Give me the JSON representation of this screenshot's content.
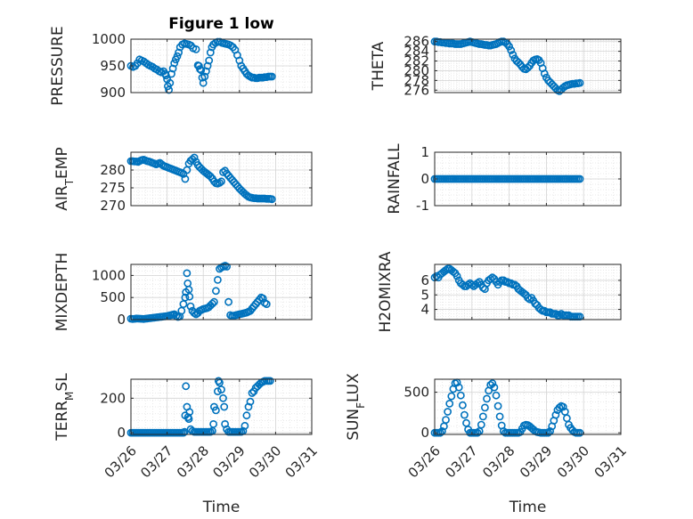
{
  "figure": {
    "title": "Figure 1 low",
    "marker_color": "#0072BD",
    "x_tick_labels": [
      "03/26",
      "03/27",
      "03/28",
      "03/29",
      "03/30",
      "03/31"
    ],
    "x_label": "Time"
  },
  "chart_data": [
    {
      "type": "scatter",
      "title": "Figure 1 low",
      "ylabel": "PRESSURE",
      "xlim": [
        0,
        5
      ],
      "ylim": [
        900,
        1000
      ],
      "yticks": [
        900,
        950,
        1000
      ],
      "grid": true,
      "x": [
        0.0,
        0.06,
        0.12,
        0.18,
        0.24,
        0.3,
        0.36,
        0.42,
        0.48,
        0.54,
        0.6,
        0.66,
        0.72,
        0.78,
        0.84,
        0.9,
        0.95,
        0.97,
        1.0,
        1.02,
        1.05,
        1.08,
        1.12,
        1.16,
        1.2,
        1.24,
        1.28,
        1.32,
        1.36,
        1.42,
        1.48,
        1.54,
        1.6,
        1.66,
        1.72,
        1.8,
        1.85,
        1.88,
        1.91,
        1.94,
        1.97,
        2.0,
        2.04,
        2.08,
        2.12,
        2.16,
        2.2,
        2.24,
        2.28,
        2.34,
        2.4,
        2.46,
        2.52,
        2.58,
        2.64,
        2.7,
        2.76,
        2.82,
        2.88,
        2.94,
        3.0,
        3.05,
        3.1,
        3.15,
        3.2,
        3.25,
        3.3,
        3.35,
        3.4,
        3.45,
        3.5,
        3.55,
        3.6,
        3.65,
        3.7,
        3.75,
        3.8,
        3.85,
        3.9
      ],
      "y": [
        950,
        948,
        950,
        955,
        962,
        960,
        958,
        955,
        952,
        950,
        948,
        945,
        943,
        940,
        938,
        940,
        935,
        932,
        925,
        912,
        905,
        918,
        935,
        945,
        955,
        962,
        968,
        975,
        985,
        990,
        992,
        991,
        990,
        988,
        983,
        981,
        951,
        950,
        944,
        942,
        928,
        918,
        930,
        940,
        950,
        960,
        975,
        985,
        990,
        993,
        995,
        995,
        993,
        992,
        991,
        990,
        988,
        985,
        980,
        970,
        960,
        950,
        945,
        940,
        935,
        932,
        930,
        928,
        928,
        927,
        927,
        928,
        928,
        928,
        929,
        929,
        930,
        930,
        930
      ]
    },
    {
      "type": "scatter",
      "ylabel": "THETA",
      "xlim": [
        0,
        5
      ],
      "ylim": [
        275.5,
        286.5
      ],
      "yticks": [
        276,
        278,
        280,
        282,
        284,
        286
      ],
      "grid": true,
      "x": [
        0.0,
        0.05,
        0.1,
        0.15,
        0.2,
        0.25,
        0.3,
        0.35,
        0.4,
        0.45,
        0.5,
        0.55,
        0.6,
        0.65,
        0.7,
        0.75,
        0.8,
        0.85,
        0.9,
        0.95,
        1.0,
        1.05,
        1.1,
        1.15,
        1.2,
        1.25,
        1.3,
        1.35,
        1.4,
        1.45,
        1.5,
        1.55,
        1.6,
        1.65,
        1.7,
        1.75,
        1.8,
        1.85,
        1.9,
        1.95,
        2.0,
        2.05,
        2.1,
        2.15,
        2.2,
        2.25,
        2.3,
        2.35,
        2.4,
        2.45,
        2.5,
        2.55,
        2.6,
        2.65,
        2.7,
        2.75,
        2.8,
        2.85,
        2.9,
        2.95,
        3.0,
        3.05,
        3.1,
        3.15,
        3.2,
        3.25,
        3.3,
        3.35,
        3.4,
        3.45,
        3.5,
        3.55,
        3.6,
        3.65,
        3.7,
        3.75,
        3.8,
        3.85,
        3.9
      ],
      "y": [
        286.0,
        286.0,
        285.9,
        285.9,
        285.8,
        285.8,
        285.7,
        285.7,
        285.6,
        285.6,
        285.6,
        285.5,
        285.5,
        285.5,
        285.5,
        285.6,
        285.7,
        285.8,
        285.9,
        286.0,
        285.9,
        285.8,
        285.7,
        285.6,
        285.5,
        285.5,
        285.4,
        285.3,
        285.3,
        285.2,
        285.2,
        285.3,
        285.4,
        285.5,
        285.7,
        285.9,
        286.0,
        286.0,
        285.8,
        285.5,
        285.0,
        284.2,
        283.3,
        282.5,
        282.0,
        281.7,
        281.3,
        280.8,
        280.4,
        280.3,
        280.6,
        281.0,
        281.6,
        282.1,
        282.3,
        282.4,
        282.2,
        281.6,
        280.5,
        279.4,
        278.6,
        278.0,
        277.6,
        277.2,
        276.8,
        276.4,
        276.0,
        275.8,
        276.1,
        276.5,
        276.8,
        277.0,
        277.1,
        277.2,
        277.3,
        277.3,
        277.4,
        277.4,
        277.5
      ]
    },
    {
      "type": "scatter",
      "ylabel": "AIR_TEMP",
      "xlim": [
        0,
        5
      ],
      "ylim": [
        270,
        285
      ],
      "yticks": [
        270,
        275,
        280
      ],
      "grid": true,
      "x": [
        0.0,
        0.05,
        0.1,
        0.15,
        0.2,
        0.25,
        0.3,
        0.35,
        0.4,
        0.45,
        0.5,
        0.55,
        0.6,
        0.65,
        0.7,
        0.75,
        0.8,
        0.85,
        0.9,
        0.95,
        1.0,
        1.05,
        1.1,
        1.15,
        1.2,
        1.25,
        1.3,
        1.35,
        1.4,
        1.45,
        1.5,
        1.55,
        1.6,
        1.65,
        1.7,
        1.75,
        1.8,
        1.85,
        1.9,
        1.95,
        2.0,
        2.05,
        2.1,
        2.15,
        2.2,
        2.25,
        2.3,
        2.35,
        2.4,
        2.45,
        2.5,
        2.55,
        2.6,
        2.65,
        2.7,
        2.75,
        2.8,
        2.85,
        2.9,
        2.95,
        3.0,
        3.05,
        3.1,
        3.15,
        3.2,
        3.25,
        3.3,
        3.35,
        3.4,
        3.45,
        3.5,
        3.55,
        3.6,
        3.65,
        3.7,
        3.75,
        3.8,
        3.85,
        3.9
      ],
      "y": [
        282.5,
        282.5,
        282.4,
        282.4,
        282.3,
        282.6,
        282.8,
        282.9,
        282.7,
        282.5,
        282.4,
        282.2,
        282.0,
        281.8,
        281.6,
        281.8,
        282.0,
        281.6,
        281.2,
        281.0,
        280.8,
        280.6,
        280.4,
        280.2,
        280.0,
        279.8,
        279.6,
        279.4,
        279.2,
        278.9,
        277.5,
        280.0,
        281.8,
        282.6,
        283.0,
        283.5,
        282.3,
        281.4,
        280.8,
        280.3,
        279.8,
        279.4,
        279.0,
        278.6,
        278.2,
        277.6,
        276.8,
        276.3,
        276.2,
        276.4,
        276.8,
        279.4,
        279.8,
        279.0,
        278.4,
        277.8,
        277.2,
        276.6,
        276.0,
        275.4,
        274.8,
        274.3,
        273.8,
        273.3,
        272.9,
        272.5,
        272.3,
        272.2,
        272.1,
        272.1,
        272.0,
        272.0,
        272.0,
        272.0,
        272.0,
        271.9,
        271.9,
        271.9,
        271.8
      ]
    },
    {
      "type": "scatter",
      "ylabel": "RAINFALL",
      "xlim": [
        0,
        5
      ],
      "ylim": [
        -1,
        1
      ],
      "yticks": [
        -1,
        0,
        1
      ],
      "grid": true,
      "x": [
        0.0,
        0.05,
        0.1,
        0.15,
        0.2,
        0.25,
        0.3,
        0.35,
        0.4,
        0.45,
        0.5,
        0.55,
        0.6,
        0.65,
        0.7,
        0.75,
        0.8,
        0.85,
        0.9,
        0.95,
        1.0,
        1.05,
        1.1,
        1.15,
        1.2,
        1.25,
        1.3,
        1.35,
        1.4,
        1.45,
        1.5,
        1.55,
        1.6,
        1.65,
        1.7,
        1.75,
        1.8,
        1.85,
        1.9,
        1.95,
        2.0,
        2.05,
        2.1,
        2.15,
        2.2,
        2.25,
        2.3,
        2.35,
        2.4,
        2.45,
        2.5,
        2.55,
        2.6,
        2.65,
        2.7,
        2.75,
        2.8,
        2.85,
        2.9,
        2.95,
        3.0,
        3.05,
        3.1,
        3.15,
        3.2,
        3.25,
        3.3,
        3.35,
        3.4,
        3.45,
        3.5,
        3.55,
        3.6,
        3.65,
        3.7,
        3.75,
        3.8,
        3.85,
        3.9
      ],
      "y": [
        0,
        0,
        0,
        0,
        0,
        0,
        0,
        0,
        0,
        0,
        0,
        0,
        0,
        0,
        0,
        0,
        0,
        0,
        0,
        0,
        0,
        0,
        0,
        0,
        0,
        0,
        0,
        0,
        0,
        0,
        0,
        0,
        0,
        0,
        0,
        0,
        0,
        0,
        0,
        0,
        0,
        0,
        0,
        0,
        0,
        0,
        0,
        0,
        0,
        0,
        0,
        0,
        0,
        0,
        0,
        0,
        0,
        0,
        0,
        0,
        0,
        0,
        0,
        0,
        0,
        0,
        0,
        0,
        0,
        0,
        0,
        0,
        0,
        0,
        0,
        0,
        0,
        0,
        0
      ]
    },
    {
      "type": "scatter",
      "ylabel": "MIXDEPTH",
      "xlim": [
        0,
        5
      ],
      "ylim": [
        0,
        1250
      ],
      "yticks": [
        0,
        500,
        1000
      ],
      "grid": true,
      "x": [
        0.0,
        0.05,
        0.1,
        0.15,
        0.2,
        0.25,
        0.3,
        0.35,
        0.4,
        0.45,
        0.5,
        0.55,
        0.6,
        0.65,
        0.7,
        0.75,
        0.8,
        0.85,
        0.9,
        0.95,
        1.0,
        1.05,
        1.1,
        1.15,
        1.2,
        1.25,
        1.3,
        1.35,
        1.4,
        1.45,
        1.5,
        1.52,
        1.55,
        1.57,
        1.6,
        1.62,
        1.65,
        1.7,
        1.75,
        1.8,
        1.85,
        1.9,
        1.95,
        2.0,
        2.05,
        2.1,
        2.15,
        2.2,
        2.25,
        2.3,
        2.35,
        2.4,
        2.45,
        2.5,
        2.55,
        2.6,
        2.65,
        2.7,
        2.75,
        2.8,
        2.85,
        2.9,
        2.95,
        3.0,
        3.05,
        3.1,
        3.15,
        3.2,
        3.25,
        3.3,
        3.35,
        3.4,
        3.45,
        3.5,
        3.55,
        3.6,
        3.65,
        3.7,
        3.75
      ],
      "y": [
        20,
        15,
        18,
        25,
        22,
        20,
        18,
        15,
        20,
        25,
        30,
        35,
        40,
        45,
        50,
        55,
        60,
        65,
        70,
        75,
        80,
        90,
        100,
        110,
        120,
        80,
        60,
        70,
        200,
        350,
        500,
        620,
        1050,
        820,
        680,
        520,
        300,
        200,
        150,
        120,
        150,
        200,
        220,
        240,
        250,
        260,
        280,
        320,
        360,
        400,
        650,
        900,
        1150,
        1180,
        1200,
        1220,
        1200,
        400,
        100,
        80,
        90,
        100,
        110,
        120,
        130,
        140,
        150,
        160,
        180,
        200,
        250,
        300,
        350,
        400,
        450,
        500,
        480,
        380,
        350
      ]
    },
    {
      "type": "scatter",
      "ylabel": "H2OMIXRA",
      "xlim": [
        0,
        5
      ],
      "ylim": [
        3.3,
        7.1
      ],
      "yticks": [
        4,
        5,
        6
      ],
      "grid": true,
      "x": [
        0.0,
        0.05,
        0.1,
        0.15,
        0.2,
        0.25,
        0.3,
        0.35,
        0.4,
        0.45,
        0.5,
        0.55,
        0.6,
        0.65,
        0.7,
        0.75,
        0.8,
        0.85,
        0.9,
        0.95,
        1.0,
        1.05,
        1.1,
        1.15,
        1.2,
        1.25,
        1.3,
        1.35,
        1.4,
        1.45,
        1.5,
        1.55,
        1.6,
        1.65,
        1.7,
        1.75,
        1.8,
        1.85,
        1.9,
        1.95,
        2.0,
        2.05,
        2.1,
        2.15,
        2.2,
        2.25,
        2.3,
        2.35,
        2.4,
        2.45,
        2.5,
        2.55,
        2.6,
        2.65,
        2.7,
        2.75,
        2.8,
        2.85,
        2.9,
        2.95,
        3.0,
        3.05,
        3.1,
        3.15,
        3.2,
        3.25,
        3.3,
        3.35,
        3.4,
        3.45,
        3.5,
        3.55,
        3.6,
        3.65,
        3.7,
        3.75,
        3.8,
        3.85,
        3.9
      ],
      "y": [
        6.2,
        6.3,
        6.2,
        6.4,
        6.5,
        6.6,
        6.7,
        6.8,
        6.8,
        6.7,
        6.6,
        6.5,
        6.3,
        6.0,
        5.8,
        5.7,
        5.6,
        5.6,
        5.7,
        5.8,
        5.7,
        5.6,
        5.7,
        5.8,
        5.9,
        5.7,
        5.5,
        5.4,
        5.8,
        6.0,
        6.1,
        6.2,
        6.1,
        5.9,
        5.7,
        5.9,
        6.0,
        6.0,
        5.9,
        5.9,
        5.8,
        5.8,
        5.7,
        5.7,
        5.6,
        5.4,
        5.3,
        5.2,
        5.1,
        5.0,
        4.8,
        4.7,
        4.8,
        4.6,
        4.4,
        4.3,
        4.1,
        4.0,
        3.9,
        3.9,
        3.8,
        3.8,
        3.8,
        3.7,
        3.7,
        3.7,
        3.6,
        3.6,
        3.7,
        3.6,
        3.6,
        3.6,
        3.6,
        3.5,
        3.5,
        3.5,
        3.5,
        3.5,
        3.5
      ]
    },
    {
      "type": "scatter",
      "ylabel": "TERR_MSL",
      "xlim": [
        0,
        5
      ],
      "ylim": [
        -10,
        310
      ],
      "yticks": [
        0,
        200
      ],
      "grid": true,
      "x": [
        0.0,
        0.05,
        0.1,
        0.15,
        0.2,
        0.25,
        0.3,
        0.35,
        0.4,
        0.45,
        0.5,
        0.55,
        0.6,
        0.65,
        0.7,
        0.75,
        0.8,
        0.85,
        0.9,
        0.95,
        1.0,
        1.05,
        1.1,
        1.15,
        1.2,
        1.25,
        1.3,
        1.35,
        1.4,
        1.45,
        1.48,
        1.5,
        1.52,
        1.55,
        1.58,
        1.6,
        1.62,
        1.65,
        1.7,
        1.75,
        1.8,
        1.85,
        1.9,
        1.95,
        2.0,
        2.05,
        2.1,
        2.15,
        2.2,
        2.25,
        2.28,
        2.3,
        2.35,
        2.4,
        2.42,
        2.45,
        2.5,
        2.55,
        2.58,
        2.6,
        2.65,
        2.7,
        2.75,
        2.8,
        2.85,
        2.9,
        2.95,
        3.0,
        3.05,
        3.1,
        3.15,
        3.2,
        3.25,
        3.3,
        3.35,
        3.4,
        3.45,
        3.5,
        3.55,
        3.6,
        3.65,
        3.7,
        3.75,
        3.8,
        3.85
      ],
      "y": [
        0,
        0,
        0,
        0,
        0,
        0,
        0,
        0,
        0,
        0,
        0,
        0,
        0,
        0,
        0,
        0,
        0,
        0,
        0,
        0,
        0,
        0,
        0,
        0,
        0,
        0,
        0,
        0,
        0,
        0,
        5,
        100,
        270,
        150,
        90,
        80,
        120,
        20,
        10,
        5,
        5,
        5,
        5,
        5,
        5,
        5,
        5,
        5,
        5,
        10,
        50,
        150,
        130,
        240,
        300,
        290,
        250,
        200,
        150,
        50,
        20,
        5,
        5,
        5,
        5,
        5,
        5,
        5,
        5,
        10,
        40,
        100,
        150,
        180,
        230,
        240,
        260,
        270,
        280,
        290,
        295,
        300,
        300,
        300,
        300
      ]
    },
    {
      "type": "scatter",
      "ylabel": "SUN_FLUX",
      "xlim": [
        0,
        5
      ],
      "ylim": [
        -20,
        660
      ],
      "yticks": [
        0,
        500
      ],
      "grid": true,
      "x": [
        0.0,
        0.05,
        0.1,
        0.15,
        0.2,
        0.25,
        0.3,
        0.35,
        0.4,
        0.45,
        0.5,
        0.55,
        0.6,
        0.65,
        0.7,
        0.75,
        0.8,
        0.85,
        0.9,
        0.95,
        1.0,
        1.05,
        1.1,
        1.15,
        1.2,
        1.25,
        1.3,
        1.35,
        1.4,
        1.45,
        1.5,
        1.55,
        1.6,
        1.65,
        1.7,
        1.75,
        1.8,
        1.85,
        1.9,
        1.95,
        2.0,
        2.05,
        2.1,
        2.15,
        2.2,
        2.25,
        2.3,
        2.35,
        2.4,
        2.45,
        2.5,
        2.55,
        2.6,
        2.65,
        2.7,
        2.75,
        2.8,
        2.85,
        2.9,
        2.95,
        3.0,
        3.05,
        3.1,
        3.15,
        3.2,
        3.25,
        3.3,
        3.35,
        3.4,
        3.45,
        3.5,
        3.55,
        3.6,
        3.65,
        3.7,
        3.75,
        3.8,
        3.85,
        3.9
      ],
      "y": [
        0,
        0,
        0,
        0,
        20,
        80,
        160,
        260,
        360,
        450,
        540,
        610,
        620,
        560,
        460,
        340,
        220,
        120,
        40,
        0,
        0,
        0,
        0,
        0,
        20,
        100,
        200,
        310,
        420,
        520,
        590,
        610,
        560,
        460,
        330,
        200,
        90,
        20,
        0,
        0,
        0,
        0,
        0,
        0,
        0,
        0,
        10,
        50,
        90,
        100,
        95,
        80,
        60,
        40,
        20,
        10,
        5,
        0,
        0,
        0,
        0,
        0,
        20,
        80,
        150,
        220,
        280,
        310,
        330,
        320,
        260,
        180,
        100,
        60,
        30,
        10,
        0,
        0,
        0
      ]
    }
  ]
}
